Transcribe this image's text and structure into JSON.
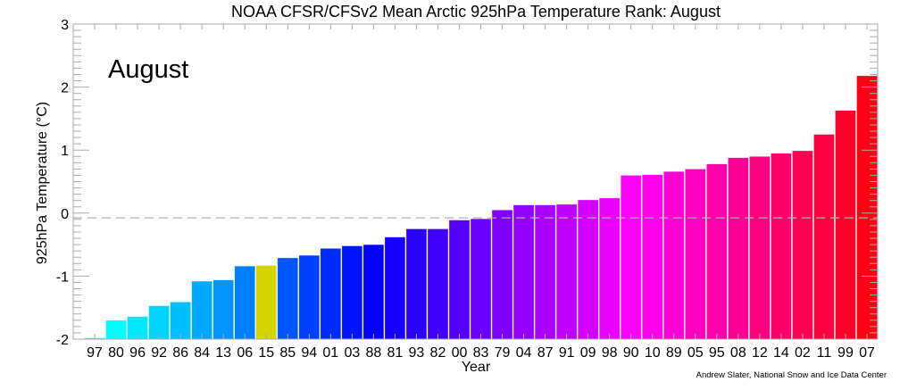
{
  "chart_data": {
    "type": "bar",
    "title": "NOAA CFSR/CFSv2 Mean Arctic 925hPa Temperature Rank: August",
    "annotation": "August",
    "xlabel": "Year",
    "ylabel": "925hPa Temperature (°C)",
    "ylim": [
      -2,
      3
    ],
    "yticks": [
      "-2",
      "-1",
      "0",
      "1",
      "2",
      "3"
    ],
    "grid": false,
    "reference_line": {
      "value": -0.075,
      "style": "dashed",
      "color": "#b0b0b0"
    },
    "categories": [
      "97",
      "80",
      "96",
      "92",
      "86",
      "84",
      "13",
      "06",
      "15",
      "85",
      "94",
      "01",
      "03",
      "88",
      "81",
      "93",
      "82",
      "00",
      "83",
      "79",
      "04",
      "87",
      "91",
      "09",
      "98",
      "90",
      "10",
      "89",
      "05",
      "95",
      "08",
      "12",
      "14",
      "02",
      "11",
      "99",
      "07"
    ],
    "values": [
      -1.98,
      -1.7,
      -1.64,
      -1.47,
      -1.41,
      -1.08,
      -1.06,
      -0.84,
      -0.83,
      -0.71,
      -0.67,
      -0.56,
      -0.52,
      -0.5,
      -0.38,
      -0.25,
      -0.25,
      -0.11,
      -0.09,
      0.05,
      0.13,
      0.13,
      0.14,
      0.21,
      0.24,
      0.6,
      0.61,
      0.66,
      0.7,
      0.78,
      0.88,
      0.9,
      0.95,
      0.99,
      1.25,
      1.63,
      2.18
    ],
    "colors": [
      "#00ffff",
      "#00ffff",
      "#00e8ff",
      "#00d4ff",
      "#00bfff",
      "#00a8ff",
      "#0094ff",
      "#007fff",
      "#d4d400",
      "#0055ff",
      "#0040ff",
      "#002aff",
      "#0015ff",
      "#0000ff",
      "#1500ff",
      "#2a00ff",
      "#3f00ff",
      "#5500ff",
      "#6a00ff",
      "#7f00ff",
      "#9400ff",
      "#aa00ff",
      "#bf00ff",
      "#d400ff",
      "#ea00ff",
      "#ff00ff",
      "#ff00ea",
      "#ff00d4",
      "#ff00bf",
      "#ff00aa",
      "#ff0094",
      "#ff007f",
      "#ff006a",
      "#ff0055",
      "#ff003f",
      "#ff002a",
      "#ff0015"
    ],
    "highlight_color": "#d4d400"
  },
  "credit": "Andrew Slater, National Snow and Ice Data Center",
  "credit_color": "#0000ff"
}
